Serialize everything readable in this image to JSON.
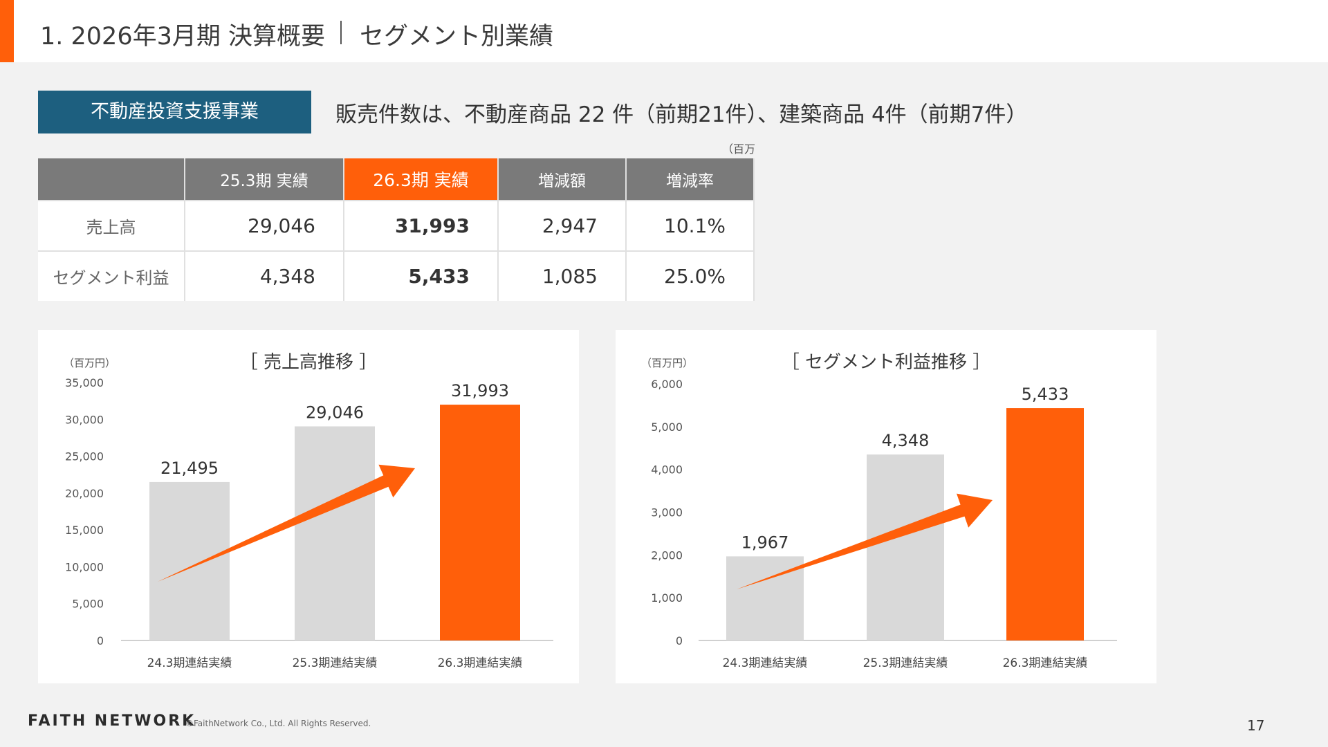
{
  "header": {
    "title": "1. 2026年3月期 決算概要",
    "subtitle": "セグメント別業績"
  },
  "segment": {
    "label": "不動産投資支援事業",
    "headline": "販売件数は、不動産商品 22 件（前期21件）、建築商品 4件（前期7件）"
  },
  "table": {
    "unit": "（百万円）",
    "columns": [
      "",
      "25.3期 実績",
      "26.3期 実績",
      "増減額",
      "増減率"
    ],
    "rows": [
      {
        "label": "売上高",
        "prev": "29,046",
        "curr": "31,993",
        "diff": "2,947",
        "rate": "10.1%"
      },
      {
        "label": "セグメント利益",
        "prev": "4,348",
        "curr": "5,433",
        "diff": "1,085",
        "rate": "25.0%"
      }
    ]
  },
  "chart_data": [
    {
      "type": "bar",
      "title": "［ 売上高推移 ］",
      "unit": "（百万円）",
      "categories": [
        "24.3期連結実績",
        "25.3期連結実績",
        "26.3期連結実績"
      ],
      "values": [
        21495,
        29046,
        31993
      ],
      "value_labels": [
        "21,495",
        "29,046",
        "31,993"
      ],
      "ylim": [
        0,
        35000
      ],
      "yticks": [
        0,
        5000,
        10000,
        15000,
        20000,
        25000,
        30000,
        35000
      ],
      "ytick_labels": [
        "0",
        "5,000",
        "10,000",
        "15,000",
        "20,000",
        "25,000",
        "30,000",
        "35,000"
      ],
      "bar_colors": [
        "#d9d9d9",
        "#d9d9d9",
        "#ff5f0a"
      ],
      "arrow_color": "#ff5f0a"
    },
    {
      "type": "bar",
      "title": "［ セグメント利益推移 ］",
      "unit": "（百万円）",
      "categories": [
        "24.3期連結実績",
        "25.3期連結実績",
        "26.3期連結実績"
      ],
      "values": [
        1967,
        4348,
        5433
      ],
      "value_labels": [
        "1,967",
        "4,348",
        "5,433"
      ],
      "ylim": [
        0,
        6000
      ],
      "yticks": [
        0,
        1000,
        2000,
        3000,
        4000,
        5000,
        6000
      ],
      "ytick_labels": [
        "0",
        "1,000",
        "2,000",
        "3,000",
        "4,000",
        "5,000",
        "6,000"
      ],
      "bar_colors": [
        "#d9d9d9",
        "#d9d9d9",
        "#ff5f0a"
      ],
      "arrow_color": "#ff5f0a"
    }
  ],
  "footer": {
    "logo": "FAITH NETWORK",
    "copyright": "©FaithNetwork Co., Ltd. All Rights Reserved.",
    "page": "17"
  }
}
